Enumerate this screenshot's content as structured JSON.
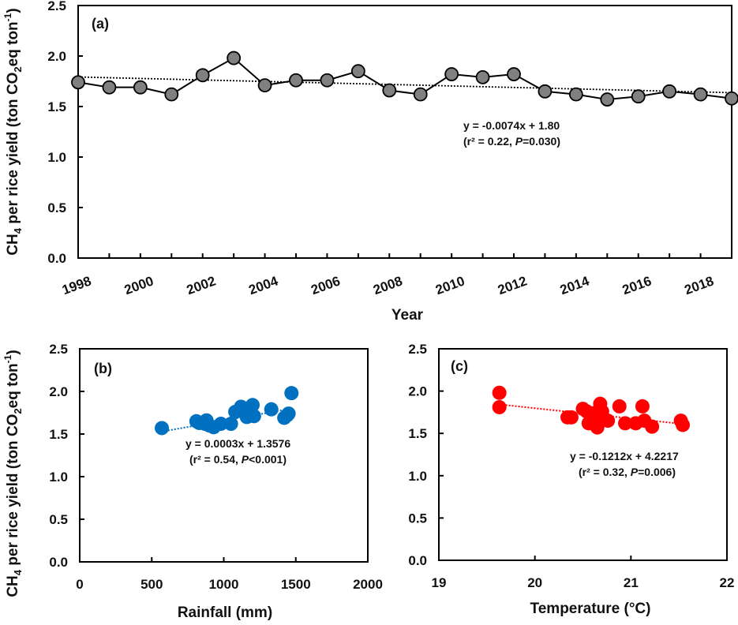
{
  "chart_data": [
    {
      "id": "a",
      "type": "line",
      "panel_label": "(a)",
      "xlabel": "Year",
      "ylabel": "CH4 per rice yield (ton CO2eq ton-1)",
      "xlim": [
        1998,
        2019
      ],
      "ylim": [
        0,
        2.5
      ],
      "xticks": [
        1998,
        2000,
        2002,
        2004,
        2006,
        2008,
        2010,
        2012,
        2014,
        2016,
        2018
      ],
      "yticks": [
        "0.0",
        "0.5",
        "1.0",
        "1.5",
        "2.0",
        "2.5"
      ],
      "x": [
        1998,
        1999,
        2000,
        2001,
        2002,
        2003,
        2004,
        2005,
        2006,
        2007,
        2008,
        2009,
        2010,
        2011,
        2012,
        2013,
        2014,
        2015,
        2016,
        2017,
        2018,
        2019
      ],
      "values": [
        1.74,
        1.69,
        1.69,
        1.62,
        1.81,
        1.98,
        1.71,
        1.76,
        1.76,
        1.85,
        1.66,
        1.62,
        1.82,
        1.79,
        1.82,
        1.65,
        1.62,
        1.57,
        1.6,
        1.65,
        1.62,
        1.58
      ],
      "marker_color": "#808080",
      "line_color": "#000000",
      "trendline": {
        "slope": -0.0074,
        "intercept": 1.8,
        "x_origin": 1998,
        "style": "dotted",
        "color": "#000000"
      },
      "equation": "y = -0.0074x + 1.80",
      "stats": {
        "prefix": "(r² = 0.22, ",
        "p_label": "P",
        "p_value": "=0.030)"
      }
    },
    {
      "id": "b",
      "type": "scatter",
      "panel_label": "(b)",
      "xlabel": "Rainfall (mm)",
      "ylabel": "CH4 per rice yield (ton CO2eq ton-1)",
      "xlim": [
        0,
        2000
      ],
      "ylim": [
        0,
        2.5
      ],
      "xticks": [
        "0",
        "500",
        "1000",
        "1500",
        "2000"
      ],
      "yticks": [
        "0.0",
        "0.5",
        "1.0",
        "1.5",
        "2.0",
        "2.5"
      ],
      "points": [
        [
          570,
          1.57
        ],
        [
          810,
          1.65
        ],
        [
          830,
          1.63
        ],
        [
          870,
          1.62
        ],
        [
          880,
          1.66
        ],
        [
          900,
          1.6
        ],
        [
          930,
          1.58
        ],
        [
          980,
          1.62
        ],
        [
          1050,
          1.62
        ],
        [
          1080,
          1.76
        ],
        [
          1120,
          1.82
        ],
        [
          1140,
          1.79
        ],
        [
          1160,
          1.7
        ],
        [
          1170,
          1.74
        ],
        [
          1200,
          1.84
        ],
        [
          1210,
          1.71
        ],
        [
          1330,
          1.79
        ],
        [
          1420,
          1.69
        ],
        [
          1440,
          1.72
        ],
        [
          1450,
          1.74
        ],
        [
          1470,
          1.98
        ],
        [
          1180,
          1.78
        ]
      ],
      "marker_color": "#0070C0",
      "trendline": {
        "slope": 0.0003,
        "intercept": 1.3576,
        "x_range": [
          570,
          1470
        ],
        "style": "dotted",
        "color": "#0070C0"
      },
      "equation": "y = 0.0003x + 1.3576",
      "stats": {
        "prefix": "(r² = 0.54, ",
        "p_label": "P",
        "p_value": "<0.001)"
      }
    },
    {
      "id": "c",
      "type": "scatter",
      "panel_label": "(c)",
      "xlabel": "Temperature (°C)",
      "ylabel": "",
      "xlim": [
        19,
        22
      ],
      "ylim": [
        0,
        2.5
      ],
      "xticks": [
        "19",
        "20",
        "21",
        "22"
      ],
      "yticks": [
        "0.0",
        "0.5",
        "1.0",
        "1.5",
        "2.0",
        "2.5"
      ],
      "points": [
        [
          19.63,
          1.98
        ],
        [
          19.63,
          1.81
        ],
        [
          20.34,
          1.69
        ],
        [
          20.38,
          1.69
        ],
        [
          20.5,
          1.79
        ],
        [
          20.54,
          1.76
        ],
        [
          20.56,
          1.62
        ],
        [
          20.6,
          1.71
        ],
        [
          20.65,
          1.57
        ],
        [
          20.68,
          1.85
        ],
        [
          20.7,
          1.76
        ],
        [
          20.72,
          1.66
        ],
        [
          20.76,
          1.65
        ],
        [
          20.88,
          1.82
        ],
        [
          20.94,
          1.62
        ],
        [
          21.05,
          1.62
        ],
        [
          21.12,
          1.82
        ],
        [
          21.14,
          1.65
        ],
        [
          21.22,
          1.58
        ],
        [
          21.52,
          1.65
        ],
        [
          21.54,
          1.6
        ],
        [
          20.62,
          1.74
        ]
      ],
      "marker_color": "#FF0000",
      "trendline": {
        "slope": -0.1212,
        "intercept": 4.2217,
        "x_range": [
          19.63,
          21.54
        ],
        "style": "dotted",
        "color": "#FF0000"
      },
      "equation": "y = -0.1212x + 4.2217",
      "stats": {
        "prefix": "(r² = 0.32, ",
        "p_label": "P",
        "p_value": "=0.006)"
      }
    }
  ],
  "labels": {
    "ylabel_ch": "CH",
    "ylabel_sub4": "4",
    "ylabel_mid": " per rice yield (ton CO",
    "ylabel_sub2": "2",
    "ylabel_eq": "eq ton",
    "ylabel_sup": "-1",
    "ylabel_close": ")"
  }
}
